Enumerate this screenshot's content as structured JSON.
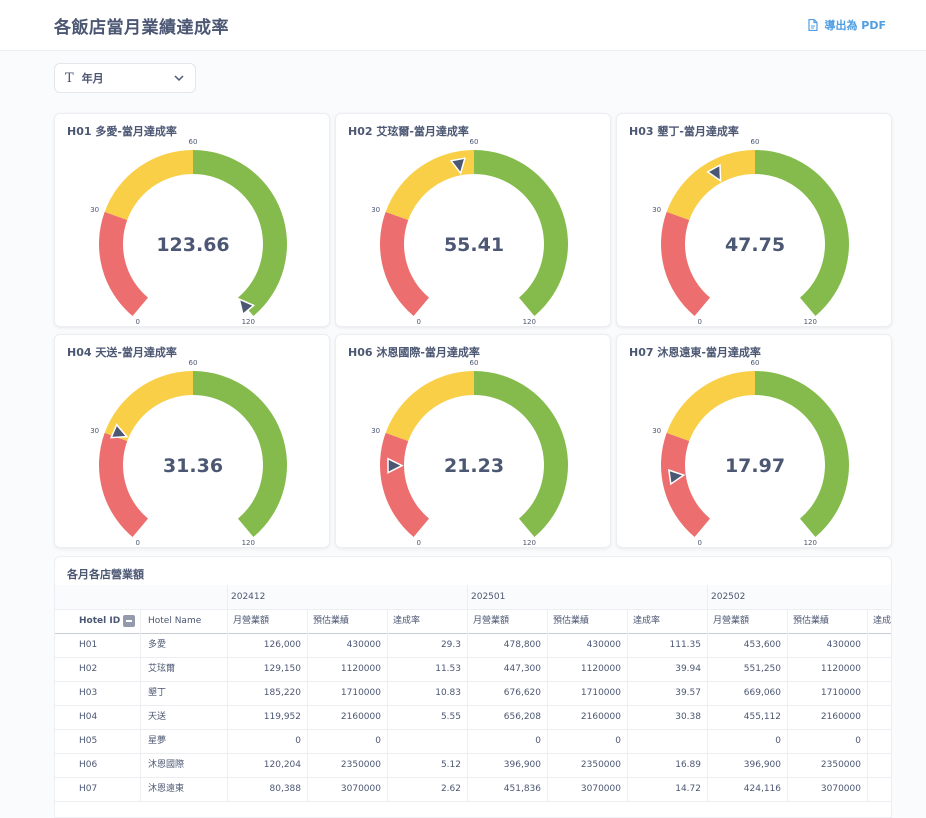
{
  "header": {
    "title": "各飯店當月業績達成率",
    "export_label": "導出為 PDF"
  },
  "filter": {
    "label": "年月"
  },
  "colors": {
    "red": "#ed6e6e",
    "yellow": "#f9cf48",
    "green": "#84bb4c",
    "text": "#4c5773",
    "accent": "#509ee3"
  },
  "gauges": [
    {
      "title": "H01 多愛-當月達成率",
      "value": 123.66,
      "display": "123.66",
      "ticks": [
        "0",
        "30",
        "60",
        "120"
      ]
    },
    {
      "title": "H02 艾玹爾-當月達成率",
      "value": 55.41,
      "display": "55.41",
      "ticks": [
        "0",
        "30",
        "60",
        "120"
      ]
    },
    {
      "title": "H03 墾丁-當月達成率",
      "value": 47.75,
      "display": "47.75",
      "ticks": [
        "0",
        "30",
        "60",
        "120"
      ]
    },
    {
      "title": "H04 天送-當月達成率",
      "value": 31.36,
      "display": "31.36",
      "ticks": [
        "0",
        "30",
        "60",
        "120"
      ]
    },
    {
      "title": "H06 沐恩國際-當月達成率",
      "value": 21.23,
      "display": "21.23",
      "ticks": [
        "0",
        "30",
        "60",
        "120"
      ]
    },
    {
      "title": "H07 沐恩遠東-當月達成率",
      "value": 17.97,
      "display": "17.97",
      "ticks": [
        "0",
        "30",
        "60",
        "120"
      ]
    }
  ],
  "table": {
    "title": "各月各店營業額",
    "periods": [
      "202412",
      "202501",
      "202502"
    ],
    "col_hotel_id": "Hotel ID",
    "col_hotel_name": "Hotel Name",
    "sub_cols": [
      "月營業額",
      "預估業績",
      "達成率"
    ],
    "last_partial": "達成",
    "rows": [
      {
        "id": "H01",
        "name": "多愛",
        "v": [
          "126,000",
          "430000",
          "29.3",
          "478,800",
          "430000",
          "111.35",
          "453,600",
          "430000"
        ]
      },
      {
        "id": "H02",
        "name": "艾玹爾",
        "v": [
          "129,150",
          "1120000",
          "11.53",
          "447,300",
          "1120000",
          "39.94",
          "551,250",
          "1120000"
        ]
      },
      {
        "id": "H03",
        "name": "墾丁",
        "v": [
          "185,220",
          "1710000",
          "10.83",
          "676,620",
          "1710000",
          "39.57",
          "669,060",
          "1710000"
        ]
      },
      {
        "id": "H04",
        "name": "天送",
        "v": [
          "119,952",
          "2160000",
          "5.55",
          "656,208",
          "2160000",
          "30.38",
          "455,112",
          "2160000"
        ]
      },
      {
        "id": "H05",
        "name": "星夢",
        "v": [
          "0",
          "0",
          "",
          "0",
          "0",
          "",
          "0",
          "0"
        ]
      },
      {
        "id": "H06",
        "name": "沐恩國際",
        "v": [
          "120,204",
          "2350000",
          "5.12",
          "396,900",
          "2350000",
          "16.89",
          "396,900",
          "2350000"
        ]
      },
      {
        "id": "H07",
        "name": "沐恩遠東",
        "v": [
          "80,388",
          "3070000",
          "2.62",
          "451,836",
          "3070000",
          "14.72",
          "424,116",
          "3070000"
        ]
      }
    ]
  }
}
